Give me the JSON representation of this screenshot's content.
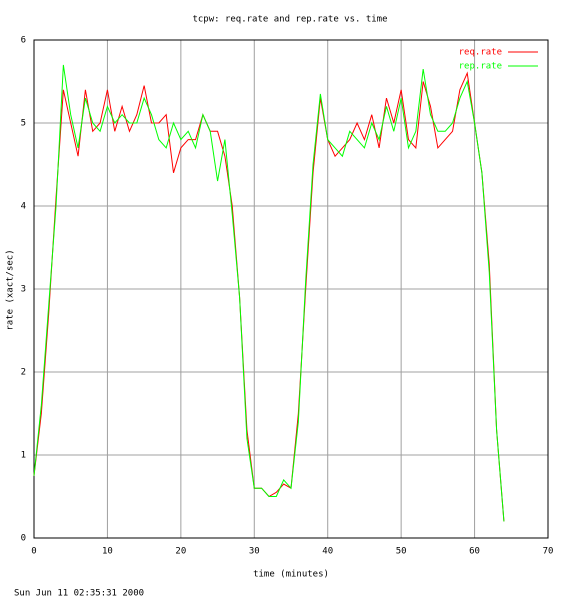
{
  "chart_data": {
    "type": "line",
    "title": "tcpw: req.rate and rep.rate vs. time",
    "x_label": "time (minutes)",
    "y_label": "rate (xact/sec)",
    "footer": "Sun Jun 11 02:35:31 2000",
    "x": [
      0,
      1,
      2,
      3,
      4,
      5,
      6,
      7,
      8,
      9,
      10,
      11,
      12,
      13,
      14,
      15,
      16,
      17,
      18,
      19,
      20,
      21,
      22,
      23,
      24,
      25,
      26,
      27,
      28,
      29,
      30,
      31,
      32,
      33,
      34,
      35,
      36,
      37,
      38,
      39,
      40,
      41,
      42,
      43,
      44,
      45,
      46,
      47,
      48,
      49,
      50,
      51,
      52,
      53,
      54,
      55,
      56,
      57,
      58,
      59,
      60,
      61,
      62,
      63,
      64
    ],
    "series": [
      {
        "name": "req.rate",
        "color": "#ff0000",
        "values": [
          0.75,
          1.5,
          2.7,
          4.1,
          5.4,
          5.0,
          4.6,
          5.4,
          4.9,
          5.0,
          5.4,
          4.9,
          5.2,
          4.9,
          5.1,
          5.45,
          5.0,
          5.0,
          5.1,
          4.4,
          4.7,
          4.8,
          4.8,
          5.1,
          4.9,
          4.9,
          4.6,
          4.0,
          2.9,
          1.3,
          0.6,
          0.6,
          0.5,
          0.55,
          0.65,
          0.6,
          1.5,
          3.0,
          4.4,
          5.3,
          4.8,
          4.6,
          4.7,
          4.8,
          5.0,
          4.8,
          5.1,
          4.7,
          5.3,
          5.0,
          5.4,
          4.8,
          4.7,
          5.5,
          5.2,
          4.7,
          4.8,
          4.9,
          5.4,
          5.6,
          5.0,
          4.4,
          3.3,
          1.3,
          0.2
        ]
      },
      {
        "name": "rep.rate",
        "color": "#00ff00",
        "values": [
          0.75,
          1.6,
          2.8,
          4.0,
          5.7,
          5.1,
          4.7,
          5.3,
          5.0,
          4.9,
          5.2,
          5.0,
          5.1,
          5.0,
          5.0,
          5.3,
          5.1,
          4.8,
          4.7,
          5.0,
          4.8,
          4.9,
          4.7,
          5.1,
          4.9,
          4.3,
          4.8,
          3.9,
          2.9,
          1.2,
          0.6,
          0.6,
          0.5,
          0.5,
          0.7,
          0.6,
          1.4,
          3.1,
          4.5,
          5.35,
          4.8,
          4.7,
          4.6,
          4.9,
          4.8,
          4.7,
          5.0,
          4.8,
          5.2,
          4.9,
          5.3,
          4.7,
          4.9,
          5.65,
          5.1,
          4.9,
          4.9,
          5.0,
          5.3,
          5.5,
          5.0,
          4.4,
          3.2,
          1.3,
          0.2
        ]
      }
    ],
    "xlim": [
      0,
      70
    ],
    "xticks": [
      0,
      10,
      20,
      30,
      40,
      50,
      60,
      70
    ],
    "ylim": [
      0,
      6
    ],
    "yticks": [
      0,
      1,
      2,
      3,
      4,
      5,
      6
    ],
    "grid": true,
    "legend": "top-right"
  }
}
